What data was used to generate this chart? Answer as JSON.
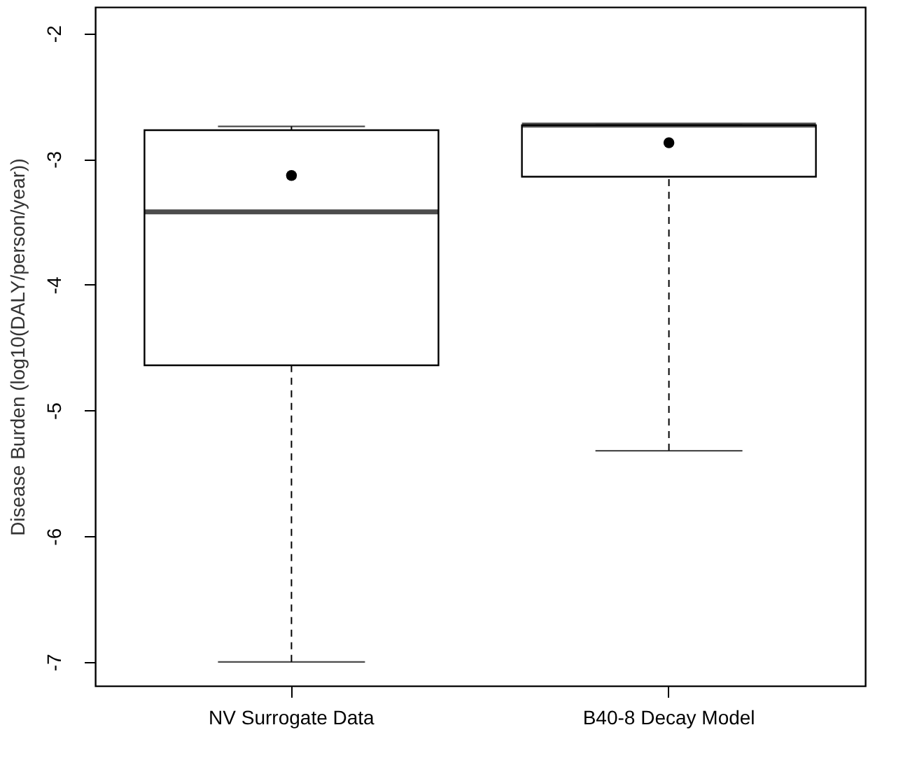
{
  "chart_data": {
    "type": "box",
    "ylabel": "Disease Burden (log10(DALY/person/year))",
    "categories": [
      "NV Surrogate Data",
      "B40-8 Decay Model"
    ],
    "boxes": [
      {
        "low": -7.0,
        "q1": -4.64,
        "median": -3.42,
        "q3": -2.77,
        "high": -2.74,
        "mean": -3.13
      },
      {
        "low": -5.32,
        "q1": -3.14,
        "median": -2.73,
        "q3": -2.73,
        "high": -2.73,
        "mean": -2.87
      }
    ],
    "ylim": [
      -7.19,
      -1.79
    ],
    "yticks": [
      -7,
      -6,
      -5,
      -4,
      -3,
      -2
    ],
    "grid": false
  }
}
